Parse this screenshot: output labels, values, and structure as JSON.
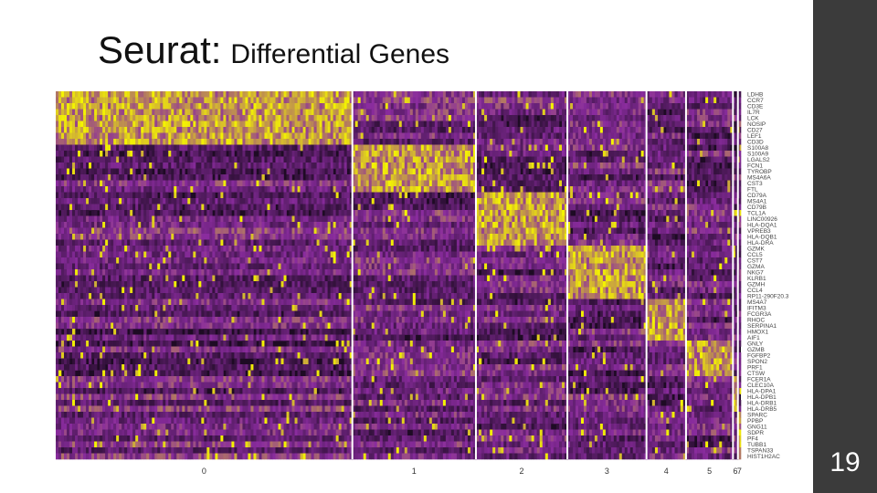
{
  "slide": {
    "title_main": "Seurat:",
    "title_sub": "Differential Genes",
    "page_number": "19"
  },
  "colors": {
    "low": "#1e0b24",
    "mid": "#8a2c9e",
    "high": "#f5f500",
    "sidebar": "#3b3b3b"
  },
  "chart_data": {
    "type": "heatmap",
    "title": "",
    "xlabel": "",
    "ylabel": "",
    "clusters": [
      {
        "label": "0",
        "cells": 600
      },
      {
        "label": "1",
        "cells": 250
      },
      {
        "label": "2",
        "cells": 185
      },
      {
        "label": "3",
        "cells": 160
      },
      {
        "label": "4",
        "cells": 80
      },
      {
        "label": "5",
        "cells": 95
      },
      {
        "label": "6",
        "cells": 10
      },
      {
        "label": "7",
        "cells": 6
      }
    ],
    "genes": [
      "LDHB",
      "CCR7",
      "CD3E",
      "IL7R",
      "LCK",
      "NOSIP",
      "CD27",
      "LEF1",
      "CD3D",
      "S100A8",
      "S100A9",
      "LGALS2",
      "FCN1",
      "TYROBP",
      "MS4A6A",
      "CST3",
      "FTL",
      "CD79A",
      "MS4A1",
      "CD79B",
      "TCL1A",
      "LINC00926",
      "HLA-DQA1",
      "VPREB3",
      "HLA-DQB1",
      "HLA-DRA",
      "GZMK",
      "CCL5",
      "CST7",
      "GZMA",
      "NKG7",
      "KLRB1",
      "GZMH",
      "CCL4",
      "RP11-290F20.3",
      "MS4A7",
      "IFITM3",
      "FCGR3A",
      "RHOC",
      "SERPINA1",
      "HMOX1",
      "AIF1",
      "GNLY",
      "GZMB",
      "FGFBP2",
      "SPON2",
      "PRF1",
      "CTSW",
      "FCER1A",
      "CLEC10A",
      "HLA-DPA1",
      "HLA-DPB1",
      "HLA-DRB1",
      "HLA-DRB5",
      "SPARC",
      "PPBP",
      "GNG11",
      "SDPR",
      "PF4",
      "TUBB1",
      "TSPAN33",
      "HIST1H2AC"
    ],
    "gene_cluster": [
      0,
      0,
      0,
      0,
      0,
      0,
      0,
      0,
      0,
      1,
      1,
      1,
      1,
      1,
      1,
      1,
      1,
      2,
      2,
      2,
      2,
      2,
      2,
      2,
      2,
      2,
      3,
      3,
      3,
      3,
      3,
      3,
      3,
      3,
      3,
      4,
      4,
      4,
      4,
      4,
      4,
      4,
      5,
      5,
      5,
      5,
      5,
      5,
      6,
      6,
      6,
      6,
      6,
      6,
      7,
      7,
      7,
      7,
      7,
      7,
      7,
      7
    ],
    "expression_scale": [
      -2.5,
      2.5
    ]
  }
}
